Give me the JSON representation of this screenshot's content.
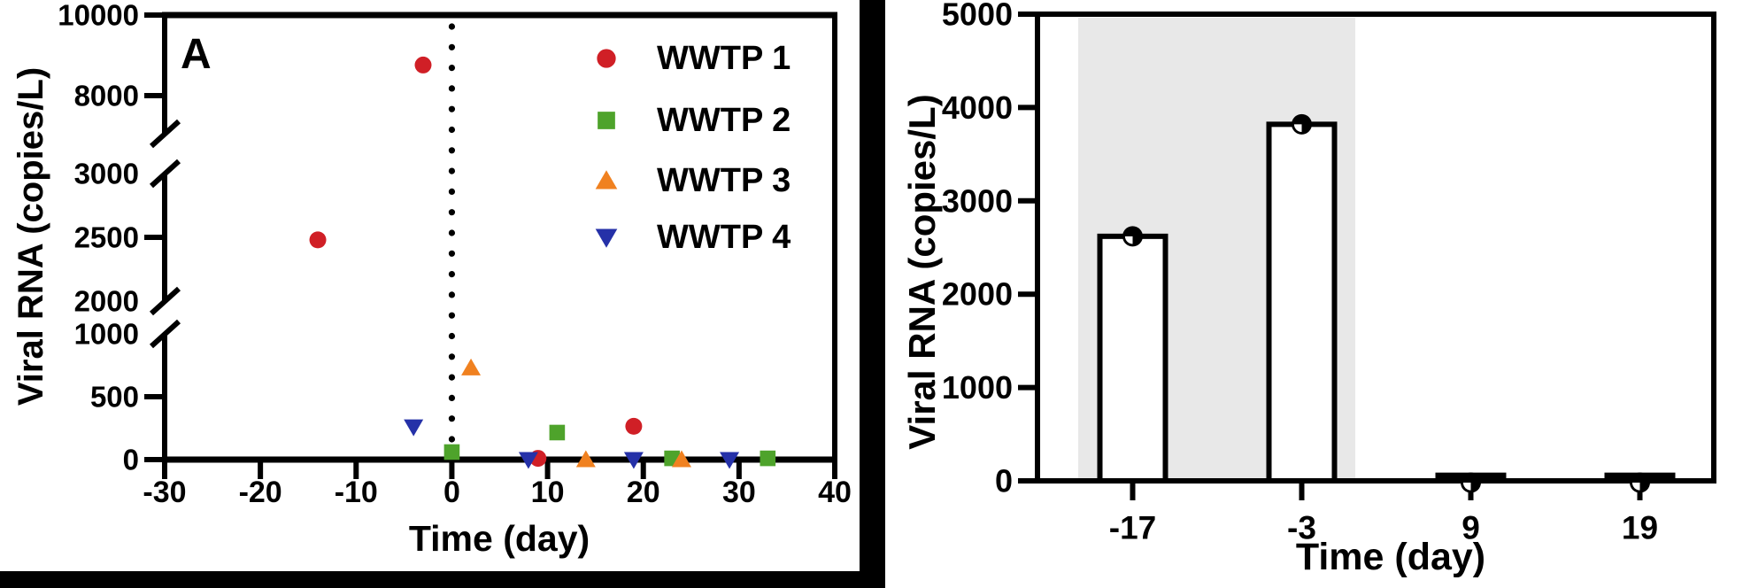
{
  "background": "#FFFFFF",
  "chart_data": [
    {
      "type": "scatter",
      "panel_label": "A",
      "xlabel": "Time (day)",
      "ylabel": "Viral RNA (copies/L)",
      "xlim": [
        -30,
        40
      ],
      "x_ticks": [
        -30,
        -20,
        -10,
        0,
        10,
        20,
        30,
        40
      ],
      "y_axis": {
        "broken": true,
        "break_marker": "slash",
        "segments": [
          {
            "range": [
              0,
              1000
            ],
            "ticks": [
              0,
              500,
              1000
            ]
          },
          {
            "range": [
              2000,
              3000
            ],
            "ticks": [
              2000,
              2500,
              3000
            ]
          },
          {
            "range": [
              8000,
              10000
            ],
            "ticks": [
              8000,
              10000
            ]
          }
        ]
      },
      "reference_line": {
        "axis": "x",
        "value": 0,
        "style": "dotted",
        "color": "#000000"
      },
      "legend_position": "top-right",
      "series": [
        {
          "name": "WWTP 1",
          "marker": "circle",
          "color": "#D01F26",
          "points": [
            [
              -14,
              2480
            ],
            [
              -3,
              8760
            ],
            [
              9,
              10
            ],
            [
              19,
              265
            ]
          ]
        },
        {
          "name": "WWTP 2",
          "marker": "square",
          "color": "#4EA32B",
          "points": [
            [
              0,
              60
            ],
            [
              11,
              215
            ],
            [
              23,
              10
            ],
            [
              33,
              10
            ]
          ]
        },
        {
          "name": "WWTP 3",
          "marker": "triangle-up",
          "color": "#F08120",
          "points": [
            [
              2,
              730
            ],
            [
              14,
              0
            ],
            [
              24,
              0
            ]
          ]
        },
        {
          "name": "WWTP 4",
          "marker": "triangle-down",
          "color": "#2531A8",
          "points": [
            [
              -4,
              260
            ],
            [
              8,
              0
            ],
            [
              19,
              0
            ],
            [
              29,
              0
            ]
          ]
        }
      ]
    },
    {
      "type": "bar",
      "xlabel": "Time (day)",
      "ylabel": "Viral RNA (copies/L)",
      "categories": [
        "-17",
        "-3",
        "9",
        "19"
      ],
      "values": [
        2620,
        3820,
        60,
        60
      ],
      "ylim": [
        0,
        5000
      ],
      "y_ticks": [
        0,
        1000,
        2000,
        3000,
        4000,
        5000
      ],
      "bar_fill": "#FFFFFF",
      "bar_border": "#000000",
      "point_marker": "three-quarter-filled-circle",
      "shaded_region": {
        "covers_categories": [
          "-17",
          "-3"
        ],
        "color": "#E8E8E8"
      }
    }
  ]
}
